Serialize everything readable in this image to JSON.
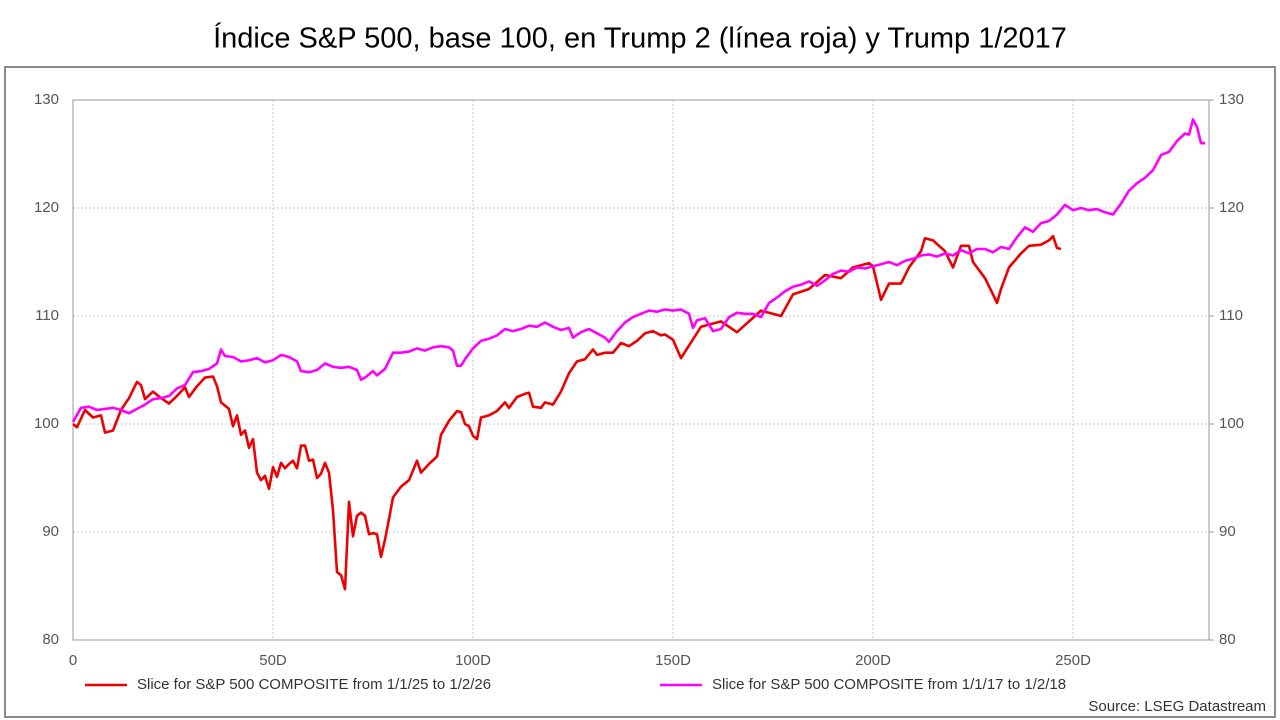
{
  "chart_data": {
    "type": "line",
    "title": "Índice S&P 500, base 100, en Trump 2 (línea roja) y Trump 1/2017",
    "source": "Source: LSEG Datastream",
    "xlim": [
      0,
      284
    ],
    "xticks": [
      0,
      {
        "value": 50,
        "label": "50D"
      },
      {
        "value": 100,
        "label": "100D"
      },
      {
        "value": 150,
        "label": "150D"
      },
      {
        "value": 200,
        "label": "200D"
      },
      {
        "value": 250,
        "label": "250D"
      }
    ],
    "ylim": [
      80,
      130
    ],
    "yticks": [
      80,
      90,
      100,
      110,
      120,
      130
    ],
    "y2lim": [
      80,
      130
    ],
    "y2ticks": [
      80,
      90,
      100,
      110,
      120,
      130
    ],
    "grid": true,
    "legend": "bottom",
    "series": [
      {
        "name": "Slice for S&P 500 COMPOSITE from 1/1/25 to 1/2/26",
        "color": "#ee0000",
        "x": [
          0,
          1,
          3,
          5,
          7,
          8,
          10,
          12,
          14,
          16,
          17,
          18,
          20,
          22,
          24,
          26,
          28,
          29,
          31,
          33,
          35,
          36,
          37,
          39,
          40,
          41,
          42,
          43,
          44,
          45,
          46,
          47,
          48,
          49,
          50,
          51,
          52,
          53,
          54,
          55,
          56,
          57,
          58,
          59,
          60,
          61,
          62,
          63,
          64,
          65,
          66,
          67,
          68,
          69,
          70,
          71,
          72,
          73,
          74,
          75,
          76,
          77,
          78,
          79,
          80,
          82,
          84,
          86,
          87,
          89,
          91,
          92,
          94,
          96,
          97,
          98,
          99,
          100,
          101,
          102,
          104,
          106,
          108,
          109,
          111,
          113,
          114,
          115,
          117,
          118,
          120,
          122,
          124,
          126,
          128,
          130,
          131,
          133,
          135,
          137,
          139,
          141,
          143,
          145,
          147,
          148,
          150,
          152,
          157,
          162,
          166,
          172,
          177,
          180,
          184,
          188,
          192,
          195,
          199,
          200,
          202,
          204,
          207,
          209,
          212,
          213,
          215,
          218,
          220,
          222,
          224,
          225,
          228,
          230,
          231,
          232,
          234,
          237,
          239,
          242,
          244,
          245,
          246,
          247
        ],
        "values": [
          100,
          99.7,
          101.3,
          100.6,
          100.8,
          99.2,
          99.4,
          101.3,
          102.4,
          103.9,
          103.6,
          102.3,
          103.0,
          102.4,
          101.9,
          102.6,
          103.4,
          102.5,
          103.5,
          104.3,
          104.4,
          103.5,
          102.0,
          101.4,
          99.8,
          100.8,
          99.0,
          99.4,
          97.8,
          98.6,
          95.5,
          94.8,
          95.2,
          94.0,
          96.0,
          95.1,
          96.4,
          95.9,
          96.3,
          96.6,
          95.9,
          98.0,
          98.0,
          96.6,
          96.7,
          95.0,
          95.4,
          96.4,
          95.5,
          92.0,
          86.3,
          86.0,
          84.7,
          92.8,
          89.6,
          91.5,
          91.8,
          91.5,
          89.8,
          89.9,
          89.8,
          87.7,
          89.3,
          91.2,
          93.2,
          94.2,
          94.8,
          96.6,
          95.5,
          96.3,
          97.0,
          99.0,
          100.3,
          101.2,
          101.1,
          100.0,
          99.8,
          98.9,
          98.6,
          100.6,
          100.8,
          101.2,
          102.0,
          101.5,
          102.5,
          102.8,
          102.9,
          101.6,
          101.5,
          102.0,
          101.8,
          103.0,
          104.7,
          105.8,
          106.0,
          106.9,
          106.4,
          106.6,
          106.6,
          107.5,
          107.2,
          107.7,
          108.4,
          108.6,
          108.2,
          108.3,
          107.8,
          106.1,
          109.0,
          109.5,
          108.5,
          110.5,
          110.0,
          112.0,
          112.5,
          113.8,
          113.5,
          114.5,
          114.9,
          114.6,
          111.5,
          113.0,
          113.0,
          114.5,
          116.0,
          117.2,
          117.0,
          116.0,
          114.5,
          116.5,
          116.5,
          115.0,
          113.5,
          112.0,
          111.2,
          112.5,
          114.5,
          115.8,
          116.5,
          116.6,
          117.0,
          117.4,
          116.3,
          116.2
        ]
      },
      {
        "name": "Slice for S&P 500 COMPOSITE from 1/1/17 to 1/2/18",
        "color": "#ff00ff",
        "x": [
          0,
          2,
          4,
          6,
          8,
          10,
          12,
          14,
          16,
          18,
          20,
          22,
          24,
          26,
          28,
          30,
          32,
          34,
          36,
          37,
          38,
          40,
          42,
          44,
          46,
          48,
          50,
          52,
          54,
          56,
          57,
          59,
          61,
          63,
          65,
          67,
          69,
          71,
          72,
          73,
          75,
          76,
          78,
          80,
          82,
          84,
          86,
          88,
          90,
          92,
          94,
          95,
          96,
          97,
          98,
          100,
          102,
          104,
          106,
          108,
          110,
          112,
          114,
          116,
          118,
          120,
          122,
          124,
          125,
          127,
          129,
          131,
          133,
          134,
          136,
          138,
          140,
          142,
          144,
          146,
          148,
          150,
          152,
          154,
          155,
          156,
          158,
          160,
          162,
          164,
          166,
          168,
          170,
          172,
          174,
          176,
          178,
          180,
          182,
          184,
          186,
          188,
          190,
          192,
          194,
          196,
          198,
          200,
          202,
          204,
          206,
          208,
          210,
          212,
          214,
          216,
          218,
          220,
          222,
          224,
          226,
          228,
          230,
          232,
          234,
          236,
          238,
          240,
          242,
          244,
          246,
          248,
          250,
          252,
          254,
          256,
          258,
          260,
          262,
          264,
          266,
          268,
          270,
          272,
          274,
          276,
          278,
          279,
          280,
          281,
          282,
          283
        ],
        "values": [
          100.2,
          101.5,
          101.6,
          101.3,
          101.4,
          101.5,
          101.3,
          101.0,
          101.4,
          101.8,
          102.3,
          102.4,
          102.6,
          103.3,
          103.6,
          104.8,
          104.9,
          105.1,
          105.6,
          106.9,
          106.3,
          106.2,
          105.8,
          105.9,
          106.1,
          105.7,
          105.9,
          106.4,
          106.2,
          105.8,
          104.9,
          104.8,
          105.0,
          105.6,
          105.3,
          105.2,
          105.3,
          105.0,
          104.1,
          104.3,
          104.9,
          104.5,
          105.1,
          106.6,
          106.6,
          106.7,
          107.0,
          106.8,
          107.1,
          107.2,
          107.1,
          106.8,
          105.4,
          105.4,
          106.0,
          107.0,
          107.7,
          107.9,
          108.2,
          108.8,
          108.6,
          108.8,
          109.1,
          109.0,
          109.4,
          109.0,
          108.7,
          108.9,
          108.0,
          108.5,
          108.8,
          108.4,
          108.0,
          107.6,
          108.6,
          109.4,
          109.9,
          110.2,
          110.5,
          110.4,
          110.6,
          110.5,
          110.6,
          110.2,
          108.9,
          109.6,
          109.8,
          108.6,
          108.8,
          109.9,
          110.3,
          110.2,
          110.2,
          109.9,
          111.2,
          111.7,
          112.3,
          112.7,
          112.9,
          113.2,
          112.8,
          113.3,
          113.9,
          114.2,
          114.1,
          114.5,
          114.4,
          114.6,
          114.8,
          115.0,
          114.7,
          115.1,
          115.3,
          115.6,
          115.7,
          115.5,
          115.8,
          115.6,
          116.1,
          115.8,
          116.2,
          116.2,
          115.9,
          116.4,
          116.2,
          117.3,
          118.2,
          117.8,
          118.6,
          118.8,
          119.4,
          120.3,
          119.8,
          120.0,
          119.8,
          119.9,
          119.6,
          119.4,
          120.4,
          121.6,
          122.3,
          122.8,
          123.5,
          124.9,
          125.2,
          126.2,
          126.9,
          126.8,
          128.2,
          127.5,
          126.0,
          126.0
        ]
      }
    ]
  }
}
